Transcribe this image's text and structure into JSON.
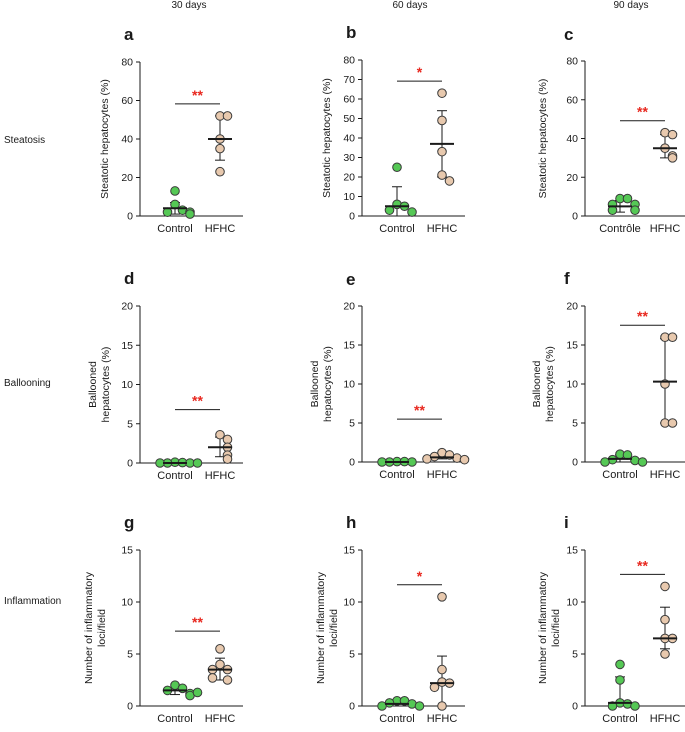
{
  "columns": [
    "30 days",
    "60 days",
    "90 days"
  ],
  "rows": [
    "Steatosis",
    "Ballooning",
    "Inflammation"
  ],
  "colors": {
    "control": "#55c855",
    "hfhc": "#e8c9ae",
    "star": "#e8271e",
    "ink": "#1a1a1a"
  },
  "chart_data": [
    {
      "panel": "a",
      "type": "scatter",
      "column": "30 days",
      "row": "Steatosis",
      "ylabel": [
        "Steatotic hepatocytes (%)"
      ],
      "ylim": [
        0,
        80
      ],
      "ticks": [
        0,
        20,
        40,
        60,
        80
      ],
      "categories": [
        "Control",
        "HFHC"
      ],
      "series": [
        {
          "name": "Control",
          "values": [
            13,
            6,
            3,
            2,
            2,
            1
          ],
          "mean": 4,
          "sd_low": 1,
          "sd_high": 7
        },
        {
          "name": "HFHC",
          "values": [
            52,
            52,
            40,
            35,
            23
          ],
          "mean": 40,
          "sd_low": 29,
          "sd_high": 52
        }
      ],
      "significance": "**"
    },
    {
      "panel": "b",
      "type": "scatter",
      "column": "60 days",
      "row": "Steatosis",
      "ylabel": [
        "Steatotic hepatocytes (%)"
      ],
      "ylim": [
        0,
        80
      ],
      "ticks": [
        0,
        10,
        20,
        30,
        40,
        50,
        60,
        70,
        80
      ],
      "categories": [
        "Control",
        "HFHC"
      ],
      "series": [
        {
          "name": "Control",
          "values": [
            25,
            6,
            5,
            3,
            2
          ],
          "mean": 5,
          "sd_low": 0,
          "sd_high": 15
        },
        {
          "name": "HFHC",
          "values": [
            63,
            49,
            33,
            21,
            18
          ],
          "mean": 37,
          "sd_low": 20,
          "sd_high": 54
        }
      ],
      "significance": "*"
    },
    {
      "panel": "c",
      "type": "scatter",
      "column": "90 days",
      "row": "Steatosis",
      "ylabel": [
        "Steatotic hepatocytes (%)"
      ],
      "ylim": [
        0,
        80
      ],
      "ticks": [
        0,
        20,
        40,
        60,
        80
      ],
      "categories": [
        "Contrôle",
        "HFHC"
      ],
      "series": [
        {
          "name": "Contrôle",
          "values": [
            9,
            9,
            6,
            6,
            3,
            3
          ],
          "mean": 5,
          "sd_low": 2,
          "sd_high": 8
        },
        {
          "name": "HFHC",
          "values": [
            43,
            42,
            35,
            31,
            30
          ],
          "mean": 35,
          "sd_low": 30,
          "sd_high": 42
        }
      ],
      "significance": "**"
    },
    {
      "panel": "d",
      "type": "scatter",
      "column": "30 days",
      "row": "Ballooning",
      "ylabel": [
        "Ballooned",
        "hepatocytes (%)"
      ],
      "ylim": [
        0,
        20
      ],
      "ticks": [
        0,
        5,
        10,
        15,
        20
      ],
      "categories": [
        "Control",
        "HFHC"
      ],
      "series": [
        {
          "name": "Control",
          "values": [
            0.1,
            0.05,
            0,
            0,
            0,
            0
          ],
          "mean": 0,
          "sd_low": 0,
          "sd_high": 0.1
        },
        {
          "name": "HFHC",
          "values": [
            3.6,
            3.0,
            2.0,
            1.0,
            0.5
          ],
          "mean": 2.0,
          "sd_low": 0.8,
          "sd_high": 3.3
        }
      ],
      "significance": "**"
    },
    {
      "panel": "e",
      "type": "scatter",
      "column": "60 days",
      "row": "Ballooning",
      "ylabel": [
        "Ballooned",
        "hepatocytes (%)"
      ],
      "ylim": [
        0,
        20
      ],
      "ticks": [
        0,
        5,
        10,
        15,
        20
      ],
      "categories": [
        "Control",
        "HFHC"
      ],
      "series": [
        {
          "name": "Control",
          "values": [
            0.05,
            0.05,
            0,
            0,
            0
          ],
          "mean": 0,
          "sd_low": 0,
          "sd_high": 0.1
        },
        {
          "name": "HFHC",
          "values": [
            1.2,
            0.9,
            0.7,
            0.5,
            0.4,
            0.3
          ],
          "mean": 0.6,
          "sd_low": 0.4,
          "sd_high": 0.9
        }
      ],
      "significance": "**"
    },
    {
      "panel": "f",
      "type": "scatter",
      "column": "90 days",
      "row": "Ballooning",
      "ylabel": [
        "Ballooned",
        "hepatocytes (%)"
      ],
      "ylim": [
        0,
        20
      ],
      "ticks": [
        0,
        5,
        10,
        15,
        20
      ],
      "categories": [
        "Control",
        "HFHC"
      ],
      "series": [
        {
          "name": "Control",
          "values": [
            1.0,
            0.9,
            0.3,
            0.2,
            0,
            0
          ],
          "mean": 0.4,
          "sd_low": 0,
          "sd_high": 0.9
        },
        {
          "name": "HFHC",
          "values": [
            16,
            16,
            10,
            5,
            5
          ],
          "mean": 10.3,
          "sd_low": 5,
          "sd_high": 15.8
        }
      ],
      "significance": "**"
    },
    {
      "panel": "g",
      "type": "scatter",
      "column": "30 days",
      "row": "Inflammation",
      "ylabel": [
        "Number of inflammatory",
        "loci/field"
      ],
      "ylim": [
        0,
        15
      ],
      "ticks": [
        0,
        5,
        10,
        15
      ],
      "categories": [
        "Control",
        "HFHC"
      ],
      "series": [
        {
          "name": "Control",
          "values": [
            2.0,
            1.7,
            1.5,
            1.2,
            1.0,
            1.3
          ],
          "mean": 1.5,
          "sd_low": 1.1,
          "sd_high": 1.8
        },
        {
          "name": "HFHC",
          "values": [
            5.5,
            4.0,
            3.5,
            3.5,
            2.7,
            2.5
          ],
          "mean": 3.5,
          "sd_low": 2.5,
          "sd_high": 4.6
        }
      ],
      "significance": "**"
    },
    {
      "panel": "h",
      "type": "scatter",
      "column": "60 days",
      "row": "Inflammation",
      "ylabel": [
        "Number of inflammatory",
        "loci/field"
      ],
      "ylim": [
        0,
        15
      ],
      "ticks": [
        0,
        5,
        10,
        15
      ],
      "categories": [
        "Control",
        "HFHC"
      ],
      "series": [
        {
          "name": "Control",
          "values": [
            0.5,
            0.5,
            0.3,
            0.2,
            0,
            0
          ],
          "mean": 0.2,
          "sd_low": 0,
          "sd_high": 0.5
        },
        {
          "name": "HFHC",
          "values": [
            10.5,
            3.5,
            2.3,
            2.2,
            1.8,
            0
          ],
          "mean": 2.2,
          "sd_low": 0,
          "sd_high": 4.8
        }
      ],
      "significance": "*"
    },
    {
      "panel": "i",
      "type": "scatter",
      "column": "90 days",
      "row": "Inflammation",
      "ylabel": [
        "Number of inflammatory",
        "loci/field"
      ],
      "ylim": [
        0,
        15
      ],
      "ticks": [
        0,
        5,
        10,
        15
      ],
      "categories": [
        "Control",
        "HFHC"
      ],
      "series": [
        {
          "name": "Control",
          "values": [
            4.0,
            2.5,
            0.3,
            0.2,
            0,
            0
          ],
          "mean": 0.3,
          "sd_low": 0,
          "sd_high": 2.8
        },
        {
          "name": "HFHC",
          "values": [
            11.5,
            8.3,
            6.5,
            6.5,
            5.0
          ],
          "mean": 6.5,
          "sd_low": 5.5,
          "sd_high": 9.5
        }
      ],
      "significance": "**"
    }
  ]
}
